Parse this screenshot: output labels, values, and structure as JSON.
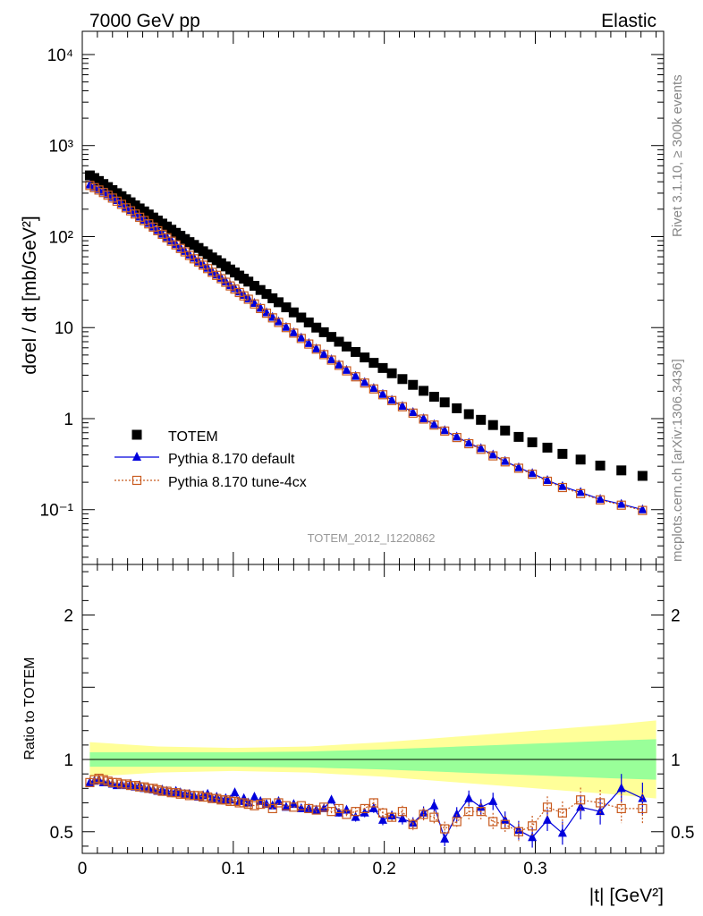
{
  "header": {
    "energy": "7000 GeV pp",
    "process": "Elastic",
    "side_text": "Rivet 3.1.10, ≥ 300k events",
    "side_text_bottom": "mcplots.cern.ch [arXiv:1306.3436]",
    "analysis_id": "TOTEM_2012_I1220862"
  },
  "colors": {
    "data": "#000000",
    "default": "#0000dd",
    "tune": "#c85a1e",
    "band_inner": "#99ff99",
    "band_outer": "#ffff99"
  },
  "chart_data": [
    {
      "type": "scatter",
      "title": "",
      "xlabel": "|t| [GeV²]",
      "ylabel": "dσel / dt [mb/GeV²]",
      "yscale": "log",
      "xlim": [
        0,
        0.385
      ],
      "ylim": [
        0.025,
        18000
      ],
      "y_ticks": [
        "10⁻¹",
        "1",
        "10",
        "10²",
        "10³",
        "10⁴"
      ],
      "legend_position": "bottom-left",
      "grid": false,
      "series": [
        {
          "name": "TOTEM",
          "marker": "square",
          "x": [
            0.005,
            0.008,
            0.011,
            0.014,
            0.017,
            0.02,
            0.023,
            0.026,
            0.029,
            0.032,
            0.035,
            0.038,
            0.041,
            0.044,
            0.047,
            0.05,
            0.053,
            0.056,
            0.059,
            0.062,
            0.065,
            0.068,
            0.071,
            0.074,
            0.077,
            0.08,
            0.083,
            0.086,
            0.089,
            0.092,
            0.095,
            0.098,
            0.101,
            0.104,
            0.107,
            0.11,
            0.114,
            0.118,
            0.122,
            0.126,
            0.13,
            0.135,
            0.14,
            0.145,
            0.15,
            0.155,
            0.16,
            0.165,
            0.17,
            0.175,
            0.181,
            0.187,
            0.193,
            0.199,
            0.205,
            0.212,
            0.219,
            0.226,
            0.233,
            0.24,
            0.248,
            0.256,
            0.264,
            0.272,
            0.28,
            0.289,
            0.298,
            0.308,
            0.318,
            0.33,
            0.343,
            0.357,
            0.371
          ],
          "y": [
            470,
            440,
            408,
            378,
            350,
            324,
            300,
            278,
            257,
            238,
            220,
            204,
            189,
            175,
            162,
            150,
            139,
            129,
            119,
            110,
            102,
            94,
            87,
            81,
            75,
            69,
            64,
            59,
            55,
            51,
            47,
            43.5,
            40.3,
            37.3,
            34.5,
            32,
            28.8,
            25.9,
            23.4,
            21,
            19,
            16.7,
            14.7,
            12.9,
            11.4,
            10,
            8.9,
            7.9,
            7,
            6.2,
            5.4,
            4.7,
            4.1,
            3.6,
            3.15,
            2.72,
            2.35,
            2.02,
            1.74,
            1.51,
            1.3,
            1.12,
            0.97,
            0.85,
            0.74,
            0.63,
            0.55,
            0.48,
            0.41,
            0.355,
            0.305,
            0.27,
            0.235
          ]
        },
        {
          "name": "Pythia 8.170 default",
          "marker": "triangle",
          "x": [
            0.005,
            0.008,
            0.011,
            0.014,
            0.017,
            0.02,
            0.023,
            0.026,
            0.029,
            0.032,
            0.035,
            0.038,
            0.041,
            0.044,
            0.047,
            0.05,
            0.053,
            0.056,
            0.059,
            0.062,
            0.065,
            0.068,
            0.071,
            0.074,
            0.077,
            0.08,
            0.083,
            0.086,
            0.089,
            0.092,
            0.095,
            0.098,
            0.101,
            0.104,
            0.107,
            0.11,
            0.114,
            0.118,
            0.122,
            0.126,
            0.13,
            0.135,
            0.14,
            0.145,
            0.15,
            0.155,
            0.16,
            0.165,
            0.17,
            0.175,
            0.181,
            0.187,
            0.193,
            0.199,
            0.205,
            0.212,
            0.219,
            0.226,
            0.233,
            0.24,
            0.248,
            0.256,
            0.264,
            0.272,
            0.28,
            0.289,
            0.298,
            0.308,
            0.318,
            0.33,
            0.343,
            0.357,
            0.371
          ],
          "y": [
            370,
            350,
            330,
            310,
            290,
            270,
            250,
            230,
            210,
            195,
            180,
            165,
            152,
            140,
            128,
            117,
            107,
            98,
            90,
            82,
            75,
            69,
            63,
            58,
            53,
            49,
            45,
            41,
            38,
            35,
            32,
            29,
            27,
            24.7,
            22.7,
            20.8,
            18.5,
            16.4,
            14.6,
            13,
            11.6,
            10.1,
            8.8,
            7.7,
            6.7,
            5.85,
            5.1,
            4.45,
            3.9,
            3.4,
            2.92,
            2.5,
            2.15,
            1.85,
            1.6,
            1.37,
            1.17,
            1.0,
            0.86,
            0.74,
            0.63,
            0.54,
            0.47,
            0.4,
            0.34,
            0.29,
            0.25,
            0.21,
            0.18,
            0.155,
            0.13,
            0.115,
            0.1
          ]
        },
        {
          "name": "Pythia 8.170 tune-4cx",
          "marker": "open-square",
          "x": [
            0.005,
            0.008,
            0.011,
            0.014,
            0.017,
            0.02,
            0.023,
            0.026,
            0.029,
            0.032,
            0.035,
            0.038,
            0.041,
            0.044,
            0.047,
            0.05,
            0.053,
            0.056,
            0.059,
            0.062,
            0.065,
            0.068,
            0.071,
            0.074,
            0.077,
            0.08,
            0.083,
            0.086,
            0.089,
            0.092,
            0.095,
            0.098,
            0.101,
            0.104,
            0.107,
            0.11,
            0.114,
            0.118,
            0.122,
            0.126,
            0.13,
            0.135,
            0.14,
            0.145,
            0.15,
            0.155,
            0.16,
            0.165,
            0.17,
            0.175,
            0.181,
            0.187,
            0.193,
            0.199,
            0.205,
            0.212,
            0.219,
            0.226,
            0.233,
            0.24,
            0.248,
            0.256,
            0.264,
            0.272,
            0.28,
            0.289,
            0.298,
            0.308,
            0.318,
            0.33,
            0.343,
            0.357,
            0.371
          ],
          "y": [
            365,
            345,
            325,
            305,
            285,
            265,
            245,
            226,
            207,
            192,
            177,
            163,
            150,
            138,
            127,
            116,
            106,
            97,
            89,
            81,
            74,
            68,
            62,
            57,
            52.5,
            48.5,
            44.5,
            40.5,
            37.5,
            34.5,
            31.5,
            28.7,
            26.5,
            24.3,
            22.3,
            20.5,
            18.2,
            16.2,
            14.4,
            12.8,
            11.4,
            10.0,
            8.7,
            7.6,
            6.6,
            5.8,
            5.05,
            4.4,
            3.85,
            3.35,
            2.88,
            2.46,
            2.12,
            1.83,
            1.58,
            1.35,
            1.15,
            0.99,
            0.85,
            0.73,
            0.62,
            0.53,
            0.46,
            0.39,
            0.335,
            0.285,
            0.245,
            0.205,
            0.175,
            0.15,
            0.128,
            0.112,
            0.098
          ]
        }
      ]
    },
    {
      "type": "line",
      "title": "",
      "xlabel": "|t| [GeV²]",
      "ylabel": "Ratio to TOTEM",
      "xlim": [
        0,
        0.385
      ],
      "ylim": [
        0.35,
        2.35
      ],
      "x_ticks": [
        "0",
        "0.1",
        "0.2",
        "0.3"
      ],
      "y_ticks": [
        "0.5",
        "1",
        "2"
      ],
      "band": {
        "x": [
          0.005,
          0.05,
          0.1,
          0.15,
          0.2,
          0.25,
          0.3,
          0.35,
          0.38
        ],
        "inner_half_width": [
          0.05,
          0.05,
          0.05,
          0.055,
          0.07,
          0.09,
          0.11,
          0.13,
          0.14
        ],
        "outer_half_width": [
          0.12,
          0.09,
          0.08,
          0.09,
          0.12,
          0.16,
          0.2,
          0.24,
          0.27
        ]
      },
      "series": [
        {
          "name": "Pythia 8.170 default",
          "x": [
            0.005,
            0.008,
            0.011,
            0.014,
            0.017,
            0.02,
            0.023,
            0.026,
            0.029,
            0.032,
            0.035,
            0.038,
            0.041,
            0.044,
            0.047,
            0.05,
            0.053,
            0.056,
            0.059,
            0.062,
            0.065,
            0.068,
            0.071,
            0.074,
            0.077,
            0.08,
            0.083,
            0.086,
            0.089,
            0.092,
            0.095,
            0.098,
            0.101,
            0.104,
            0.107,
            0.11,
            0.114,
            0.118,
            0.122,
            0.126,
            0.13,
            0.135,
            0.14,
            0.145,
            0.15,
            0.155,
            0.16,
            0.165,
            0.17,
            0.175,
            0.181,
            0.187,
            0.193,
            0.199,
            0.205,
            0.212,
            0.219,
            0.226,
            0.233,
            0.24,
            0.248,
            0.256,
            0.264,
            0.272,
            0.28,
            0.289,
            0.298,
            0.308,
            0.318,
            0.33,
            0.343,
            0.357,
            0.371
          ],
          "y": [
            0.84,
            0.85,
            0.86,
            0.84,
            0.84,
            0.83,
            0.82,
            0.83,
            0.82,
            0.83,
            0.81,
            0.82,
            0.8,
            0.8,
            0.79,
            0.78,
            0.79,
            0.78,
            0.77,
            0.78,
            0.77,
            0.76,
            0.76,
            0.75,
            0.74,
            0.75,
            0.76,
            0.73,
            0.74,
            0.72,
            0.73,
            0.72,
            0.77,
            0.71,
            0.73,
            0.7,
            0.74,
            0.71,
            0.69,
            0.68,
            0.71,
            0.67,
            0.69,
            0.66,
            0.66,
            0.65,
            0.66,
            0.72,
            0.63,
            0.65,
            0.6,
            0.63,
            0.66,
            0.58,
            0.61,
            0.59,
            0.56,
            0.63,
            0.68,
            0.45,
            0.62,
            0.73,
            0.67,
            0.71,
            0.58,
            0.51,
            0.46,
            0.58,
            0.49,
            0.67,
            0.64,
            0.8,
            0.73
          ],
          "err": [
            0.01,
            0.01,
            0.01,
            0.01,
            0.01,
            0.01,
            0.01,
            0.01,
            0.01,
            0.01,
            0.01,
            0.01,
            0.01,
            0.01,
            0.01,
            0.01,
            0.01,
            0.01,
            0.01,
            0.01,
            0.01,
            0.01,
            0.01,
            0.01,
            0.01,
            0.01,
            0.01,
            0.01,
            0.01,
            0.01,
            0.01,
            0.01,
            0.01,
            0.01,
            0.01,
            0.01,
            0.01,
            0.012,
            0.012,
            0.012,
            0.012,
            0.015,
            0.015,
            0.015,
            0.02,
            0.02,
            0.02,
            0.025,
            0.025,
            0.025,
            0.03,
            0.03,
            0.03,
            0.035,
            0.035,
            0.04,
            0.04,
            0.045,
            0.045,
            0.05,
            0.05,
            0.055,
            0.055,
            0.06,
            0.06,
            0.065,
            0.07,
            0.075,
            0.08,
            0.085,
            0.09,
            0.1,
            0.11
          ]
        },
        {
          "name": "Pythia 8.170 tune-4cx",
          "x": [
            0.005,
            0.008,
            0.011,
            0.014,
            0.017,
            0.02,
            0.023,
            0.026,
            0.029,
            0.032,
            0.035,
            0.038,
            0.041,
            0.044,
            0.047,
            0.05,
            0.053,
            0.056,
            0.059,
            0.062,
            0.065,
            0.068,
            0.071,
            0.074,
            0.077,
            0.08,
            0.083,
            0.086,
            0.089,
            0.092,
            0.095,
            0.098,
            0.101,
            0.104,
            0.107,
            0.11,
            0.114,
            0.118,
            0.122,
            0.126,
            0.13,
            0.135,
            0.14,
            0.145,
            0.15,
            0.155,
            0.16,
            0.165,
            0.17,
            0.175,
            0.181,
            0.187,
            0.193,
            0.199,
            0.205,
            0.212,
            0.219,
            0.226,
            0.233,
            0.24,
            0.248,
            0.256,
            0.264,
            0.272,
            0.28,
            0.289,
            0.298,
            0.308,
            0.318,
            0.33,
            0.343,
            0.357,
            0.371
          ],
          "y": [
            0.84,
            0.86,
            0.87,
            0.86,
            0.85,
            0.84,
            0.84,
            0.83,
            0.83,
            0.82,
            0.82,
            0.81,
            0.81,
            0.8,
            0.8,
            0.79,
            0.78,
            0.78,
            0.77,
            0.77,
            0.76,
            0.76,
            0.75,
            0.75,
            0.75,
            0.74,
            0.74,
            0.73,
            0.73,
            0.72,
            0.72,
            0.71,
            0.71,
            0.7,
            0.7,
            0.69,
            0.68,
            0.69,
            0.7,
            0.66,
            0.7,
            0.68,
            0.67,
            0.68,
            0.66,
            0.65,
            0.67,
            0.64,
            0.66,
            0.62,
            0.64,
            0.66,
            0.7,
            0.63,
            0.6,
            0.64,
            0.55,
            0.62,
            0.6,
            0.52,
            0.57,
            0.64,
            0.64,
            0.57,
            0.55,
            0.5,
            0.54,
            0.67,
            0.63,
            0.72,
            0.7,
            0.66,
            0.66
          ],
          "err": [
            0.01,
            0.01,
            0.01,
            0.01,
            0.01,
            0.01,
            0.01,
            0.01,
            0.01,
            0.01,
            0.01,
            0.01,
            0.01,
            0.01,
            0.01,
            0.01,
            0.01,
            0.01,
            0.01,
            0.01,
            0.01,
            0.01,
            0.01,
            0.01,
            0.01,
            0.01,
            0.01,
            0.01,
            0.01,
            0.01,
            0.01,
            0.01,
            0.01,
            0.01,
            0.01,
            0.01,
            0.01,
            0.012,
            0.012,
            0.012,
            0.012,
            0.015,
            0.015,
            0.015,
            0.02,
            0.02,
            0.02,
            0.025,
            0.025,
            0.025,
            0.03,
            0.03,
            0.03,
            0.035,
            0.035,
            0.04,
            0.04,
            0.045,
            0.045,
            0.05,
            0.05,
            0.055,
            0.055,
            0.06,
            0.06,
            0.065,
            0.07,
            0.075,
            0.08,
            0.085,
            0.09,
            0.1,
            0.11
          ]
        }
      ]
    }
  ]
}
